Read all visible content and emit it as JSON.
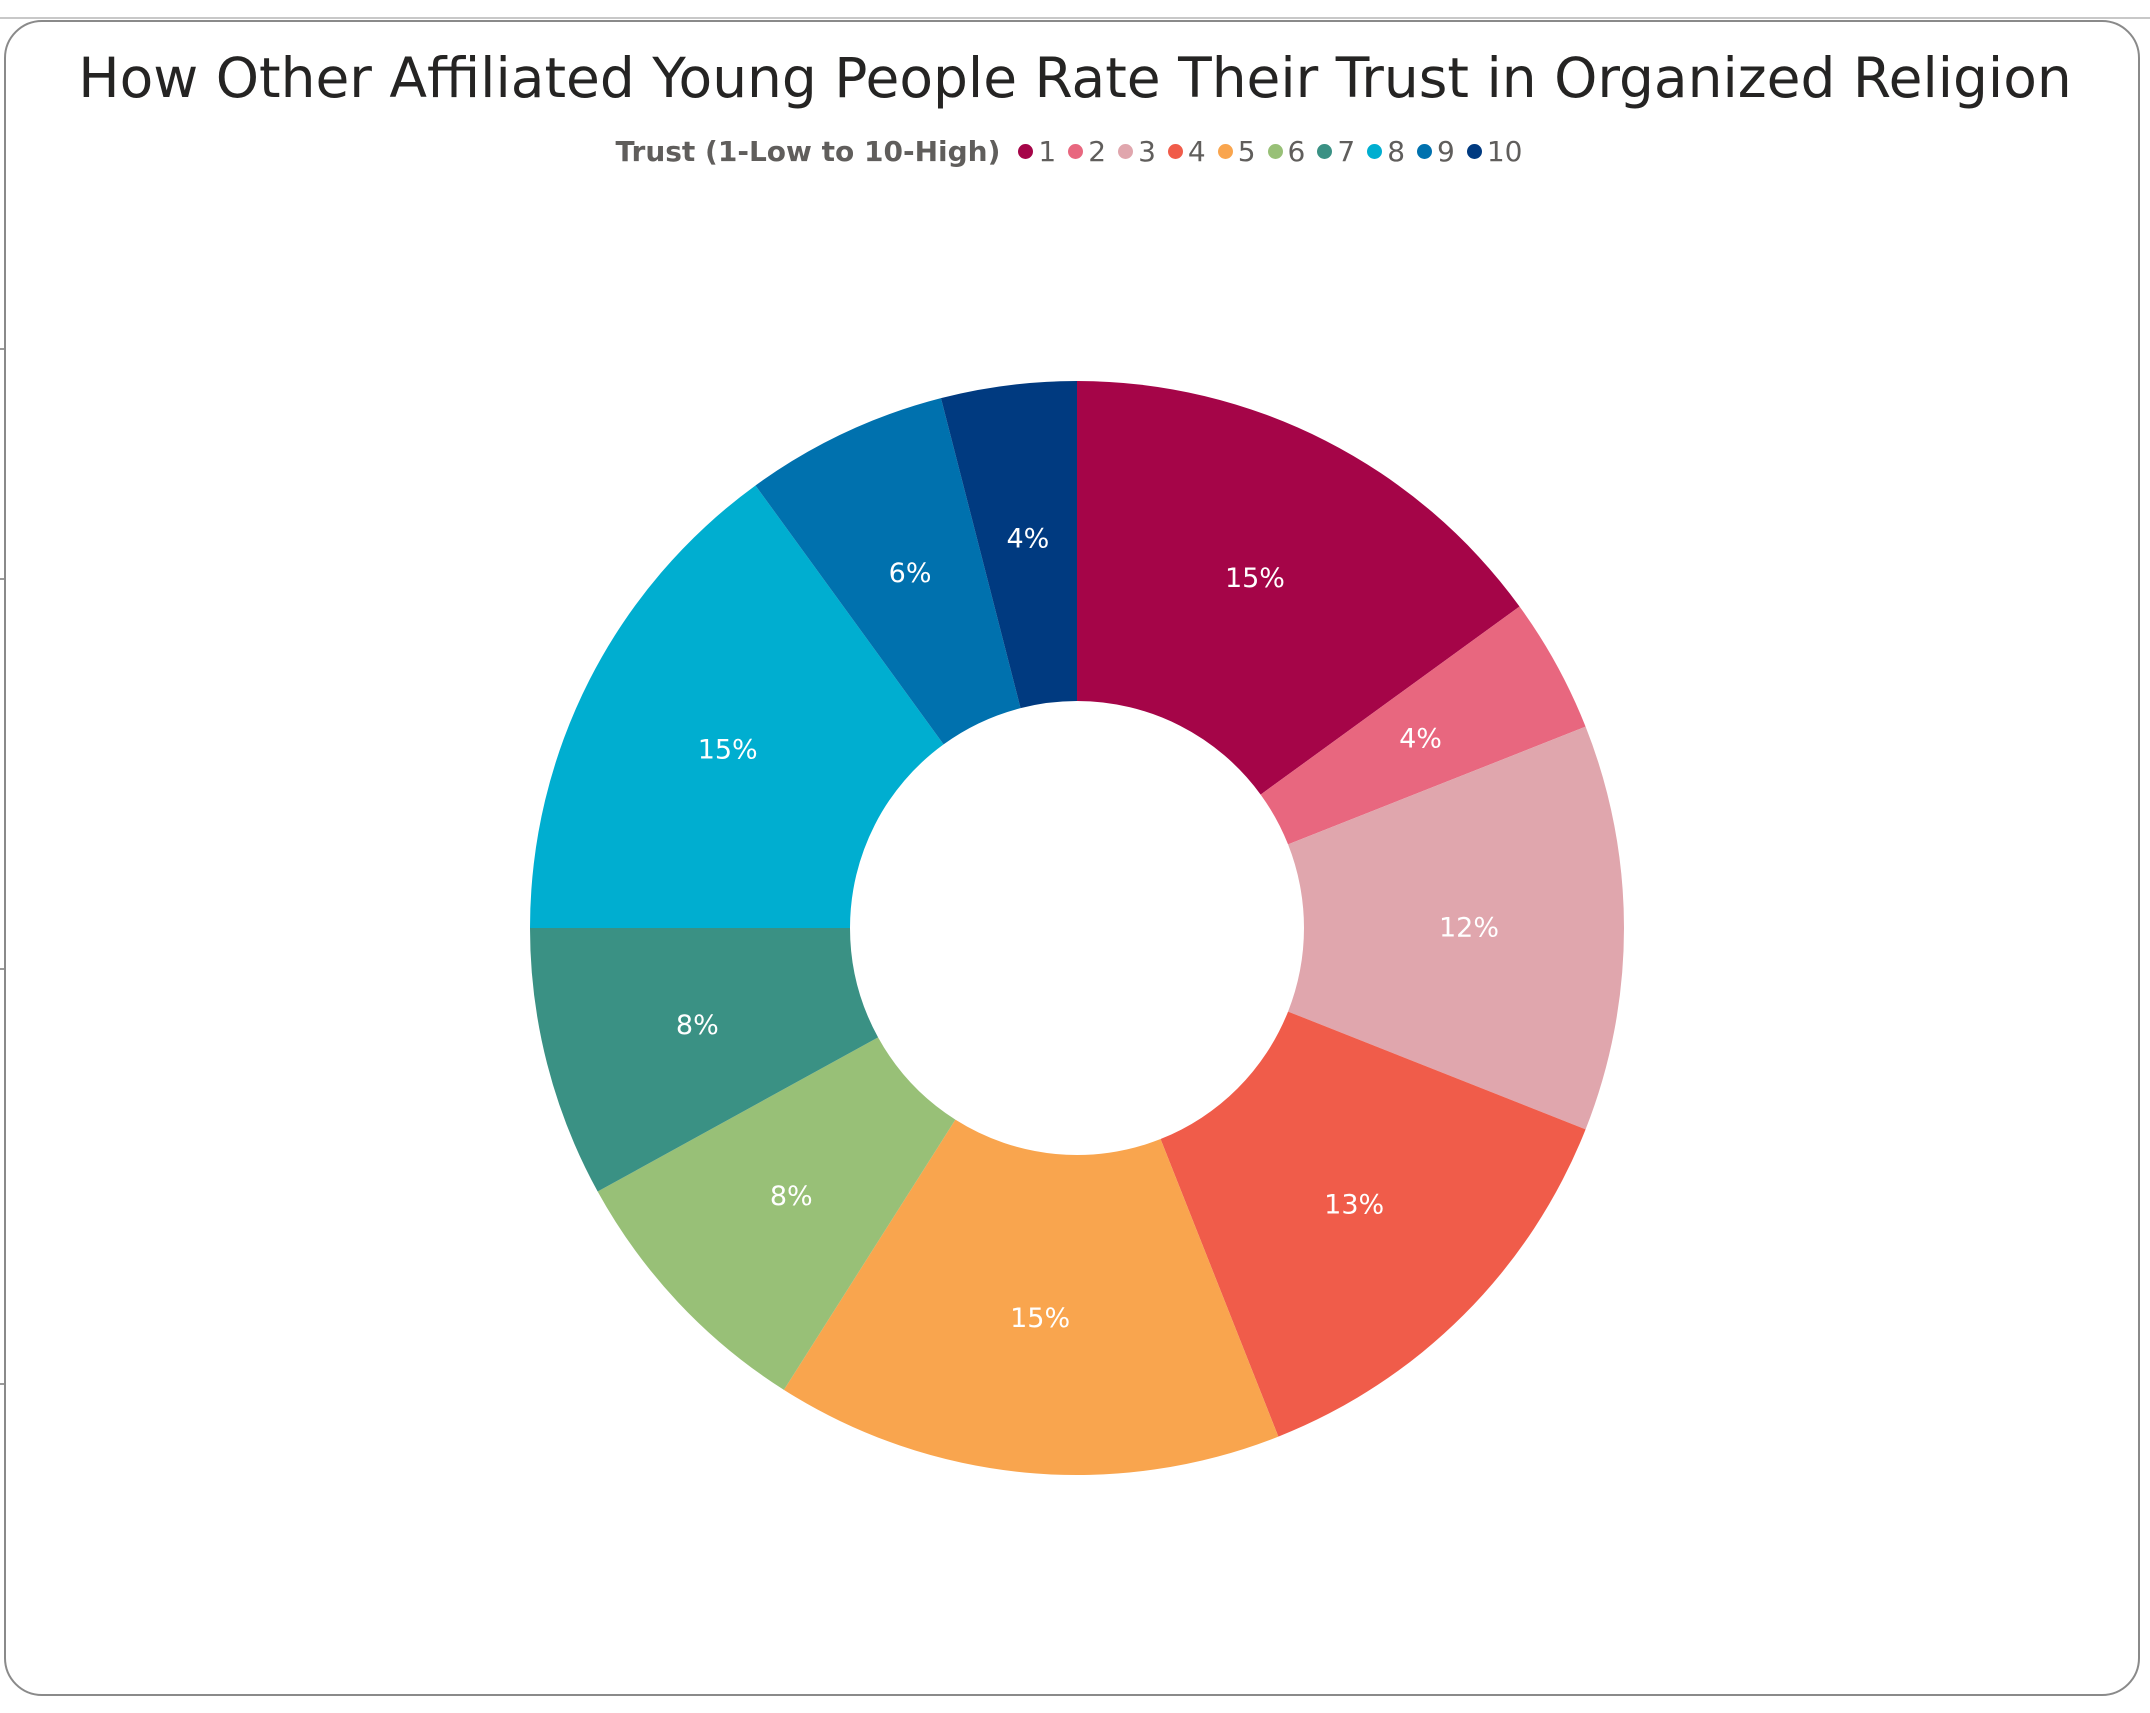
{
  "title": "How Other Affiliated Young People Rate Their Trust in Organized Religion",
  "legend": {
    "title": "Trust (1-Low to 10-High)"
  },
  "chart_data": {
    "type": "pie",
    "donut": true,
    "legend_title": "Trust (1-Low to 10-High)",
    "legend_position": "top-center",
    "categories": [
      "1",
      "2",
      "3",
      "4",
      "5",
      "6",
      "7",
      "8",
      "9",
      "10"
    ],
    "values": [
      15,
      4,
      12,
      13,
      15,
      8,
      8,
      15,
      6,
      4
    ],
    "labels": [
      "15%",
      "4%",
      "12%",
      "13%",
      "15%",
      "8%",
      "8%",
      "15%",
      "6%",
      "4%"
    ],
    "colors": [
      "#a50548",
      "#e8677f",
      "#e0a6ad",
      "#f05c4a",
      "#f9a54e",
      "#98c077",
      "#3a9184",
      "#00aed0",
      "#0071ae",
      "#003a80"
    ]
  }
}
